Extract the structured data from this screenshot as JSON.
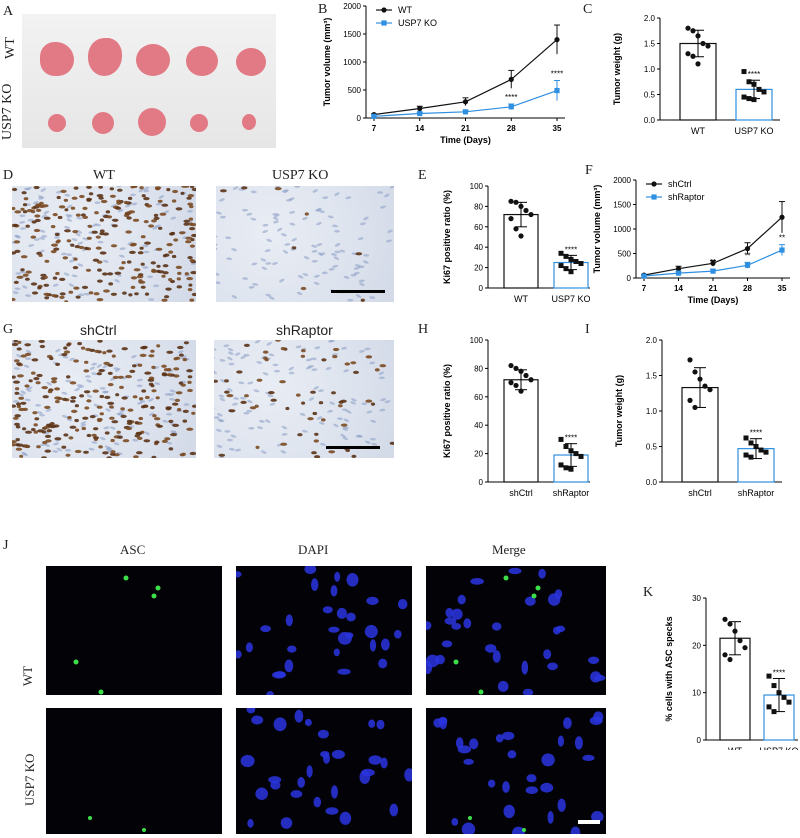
{
  "panel_letters": [
    "A",
    "B",
    "C",
    "D",
    "E",
    "F",
    "G",
    "H",
    "I",
    "J",
    "K"
  ],
  "panelA": {
    "row_labels": [
      "WT",
      "USP7 KO"
    ]
  },
  "panelD": {
    "titles": [
      "WT",
      "USP7 KO"
    ]
  },
  "panelG": {
    "titles": [
      "shCtrl",
      "shRaptor"
    ]
  },
  "panelJ": {
    "col_titles": [
      "ASC",
      "DAPI",
      "Merge"
    ],
    "row_labels": [
      "WT",
      "USP7 KO"
    ]
  },
  "colors": {
    "wt": "#111111",
    "ko": "#2f8fe0",
    "tumor": "#e27a85"
  },
  "chart_data": [
    {
      "id": "B",
      "type": "line",
      "xlabel": "Time (Days)",
      "ylabel": "Tumor volume (mm³)",
      "x": [
        7,
        14,
        21,
        28,
        35
      ],
      "ylim": [
        0,
        2000
      ],
      "yticks": [
        0,
        500,
        1000,
        1500,
        2000
      ],
      "series": [
        {
          "name": "WT",
          "values": [
            60,
            170,
            290,
            690,
            1400
          ],
          "err": [
            15,
            40,
            70,
            160,
            260
          ]
        },
        {
          "name": "USP7 KO",
          "values": [
            30,
            80,
            110,
            200,
            490
          ],
          "err": [
            10,
            20,
            30,
            50,
            180
          ]
        }
      ],
      "annotations": [
        {
          "x": 28,
          "text": "****"
        },
        {
          "x": 35,
          "text": "****"
        }
      ],
      "legend": "top-left"
    },
    {
      "id": "C",
      "type": "bar",
      "categories": [
        "WT",
        "USP7 KO"
      ],
      "ylabel": "Tumor weight (g)",
      "ylim": [
        0,
        2.0
      ],
      "yticks": [
        0.0,
        0.5,
        1.0,
        1.5,
        2.0
      ],
      "values": [
        1.5,
        0.6
      ],
      "err": [
        0.26,
        0.18
      ],
      "points": [
        [
          1.8,
          1.75,
          1.65,
          1.5,
          1.45,
          1.3,
          1.25,
          1.1
        ],
        [
          0.95,
          0.75,
          0.7,
          0.6,
          0.55,
          0.45,
          0.42,
          0.4
        ]
      ],
      "annotation": "****"
    },
    {
      "id": "E",
      "type": "bar",
      "categories": [
        "WT",
        "USP7 KO"
      ],
      "ylabel": "Ki67 positive ratio (%)",
      "ylim": [
        0,
        100
      ],
      "yticks": [
        0,
        20,
        40,
        60,
        80,
        100
      ],
      "values": [
        72,
        25
      ],
      "err": [
        12,
        7
      ],
      "points": [
        [
          85,
          84,
          80,
          76,
          72,
          68,
          58,
          51
        ],
        [
          34,
          31,
          28,
          26,
          24,
          22,
          19,
          16
        ]
      ],
      "annotation": "****"
    },
    {
      "id": "F",
      "type": "line",
      "xlabel": "Time (Days)",
      "ylabel": "Tumor volume (mm³)",
      "x": [
        7,
        14,
        21,
        28,
        35
      ],
      "ylim": [
        0,
        2000
      ],
      "yticks": [
        0,
        500,
        1000,
        1500,
        2000
      ],
      "series": [
        {
          "name": "shCtrl",
          "values": [
            60,
            190,
            300,
            600,
            1240
          ],
          "err": [
            15,
            50,
            60,
            120,
            320
          ]
        },
        {
          "name": "shRaptor",
          "values": [
            40,
            100,
            140,
            260,
            570
          ],
          "err": [
            10,
            30,
            40,
            60,
            110
          ]
        }
      ],
      "annotations": [
        {
          "x": 21,
          "text": "**"
        },
        {
          "x": 28,
          "text": "**"
        },
        {
          "x": 35,
          "text": "**"
        }
      ],
      "legend": "top-left"
    },
    {
      "id": "H",
      "type": "bar",
      "categories": [
        "shCtrl",
        "shRaptor"
      ],
      "ylabel": "Ki67 positive ratio (%)",
      "ylim": [
        0,
        100
      ],
      "yticks": [
        0,
        20,
        40,
        60,
        80,
        100
      ],
      "values": [
        72,
        19
      ],
      "err": [
        7,
        8
      ],
      "points": [
        [
          82,
          80,
          78,
          75,
          72,
          70,
          68,
          64
        ],
        [
          30,
          25,
          22,
          20,
          18,
          12,
          10,
          9
        ]
      ],
      "annotation": "****"
    },
    {
      "id": "I",
      "type": "bar",
      "categories": [
        "shCtrl",
        "shRaptor"
      ],
      "ylabel": "Tumor weight (g)",
      "ylim": [
        0,
        2.0
      ],
      "yticks": [
        0.0,
        0.5,
        1.0,
        1.5,
        2.0
      ],
      "values": [
        1.33,
        0.47
      ],
      "err": [
        0.28,
        0.14
      ],
      "points": [
        [
          1.72,
          1.55,
          1.45,
          1.35,
          1.3,
          1.15,
          1.05
        ],
        [
          0.62,
          0.55,
          0.5,
          0.45,
          0.42,
          0.38,
          0.35
        ]
      ],
      "annotation": "****"
    },
    {
      "id": "K",
      "type": "bar",
      "categories": [
        "WT",
        "USP7 KO"
      ],
      "ylabel": "% cells with ASC specks",
      "ylim": [
        0,
        30
      ],
      "yticks": [
        0,
        10,
        20,
        30
      ],
      "values": [
        21.5,
        9.5
      ],
      "err": [
        3.5,
        3.5
      ],
      "points": [
        [
          25.5,
          24.5,
          23,
          21,
          19.5,
          18,
          17
        ],
        [
          13.5,
          11.5,
          10,
          9,
          8,
          7,
          6
        ]
      ],
      "annotation": "****"
    }
  ]
}
